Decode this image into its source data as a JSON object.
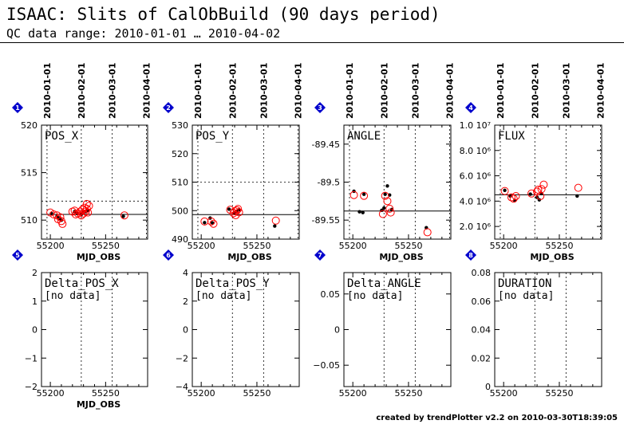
{
  "header": {
    "title": "ISAAC: Slits of CalObBuild (90 days period)",
    "subtitle": "QC data range: 2010-01-01 … 2010-04-02"
  },
  "footer": "created by trendPlotter v2.2 on 2010-03-30T18:39:05",
  "colors": {
    "model": "#000000",
    "measured": "#ff0000",
    "badge": "#0000cc"
  },
  "chart_data": [
    {
      "panel": "1",
      "type": "scatter",
      "title": "POS_X",
      "xlabel": "MJD_OBS",
      "ylabel": "",
      "xlim": [
        55192,
        55288
      ],
      "ylim": [
        508,
        520
      ],
      "yticks": [
        510,
        515,
        520
      ],
      "ytick_labels": [
        "510",
        "515",
        "520"
      ],
      "xticks": [
        55200,
        55250
      ],
      "xtick_labels": [
        "55200",
        "55250"
      ],
      "date_ticks": [
        {
          "x": 55197,
          "label": "2010-01-01"
        },
        {
          "x": 55228,
          "label": "2010-02-01"
        },
        {
          "x": 55256,
          "label": "2010-03-01"
        },
        {
          "x": 55287,
          "label": "2010-04-01"
        }
      ],
      "reference_line": 510.6,
      "threshold_lines": [
        512
      ],
      "series": [
        {
          "name": "model",
          "style": "dot",
          "points": [
            [
              55201,
              510.7
            ],
            [
              55206,
              510.4
            ],
            [
              55208,
              510.2
            ],
            [
              55210,
              510.0
            ],
            [
              55222,
              510.9
            ],
            [
              55224,
              510.7
            ],
            [
              55228,
              510.6
            ],
            [
              55230,
              510.8
            ],
            [
              55232,
              510.9
            ],
            [
              55234,
              511.0
            ],
            [
              55266,
              510.4
            ]
          ]
        },
        {
          "name": "measured",
          "style": "circle",
          "points": [
            [
              55200,
              510.8
            ],
            [
              55203,
              510.6
            ],
            [
              55206,
              510.5
            ],
            [
              55207,
              510.1
            ],
            [
              55209,
              510.3
            ],
            [
              55210,
              509.9
            ],
            [
              55211,
              509.6
            ],
            [
              55220,
              510.9
            ],
            [
              55222,
              511.0
            ],
            [
              55223,
              510.6
            ],
            [
              55225,
              510.7
            ],
            [
              55227,
              510.9
            ],
            [
              55228,
              510.5
            ],
            [
              55229,
              511.1
            ],
            [
              55230,
              510.7
            ],
            [
              55231,
              511.3
            ],
            [
              55232,
              510.9
            ],
            [
              55233,
              511.2
            ],
            [
              55233,
              511.7
            ],
            [
              55234,
              510.8
            ],
            [
              55235,
              511.5
            ],
            [
              55267,
              510.5
            ]
          ]
        }
      ]
    },
    {
      "panel": "2",
      "type": "scatter",
      "title": "POS_Y",
      "xlabel": "MJD_OBS",
      "ylabel": "",
      "xlim": [
        55192,
        55288
      ],
      "ylim": [
        490,
        530
      ],
      "yticks": [
        490,
        500,
        510,
        520,
        530
      ],
      "ytick_labels": [
        "490",
        "500",
        "510",
        "520",
        "530"
      ],
      "xticks": [
        55200,
        55250
      ],
      "xtick_labels": [
        "55200",
        "55250"
      ],
      "date_ticks": [
        {
          "x": 55197,
          "label": "2010-01-01"
        },
        {
          "x": 55228,
          "label": "2010-02-01"
        },
        {
          "x": 55256,
          "label": "2010-03-01"
        },
        {
          "x": 55287,
          "label": "2010-04-01"
        }
      ],
      "reference_line": 498.6,
      "threshold_lines": [
        510
      ],
      "series": [
        {
          "name": "model",
          "style": "dot",
          "points": [
            [
              55203,
              495.8
            ],
            [
              55208,
              497.4
            ],
            [
              55210,
              495.7
            ],
            [
              55225,
              500.5
            ],
            [
              55230,
              499.2
            ],
            [
              55232,
              499.8
            ],
            [
              55234,
              500.3
            ],
            [
              55266,
              494.6
            ]
          ]
        },
        {
          "name": "measured",
          "style": "circle",
          "points": [
            [
              55203,
              496.2
            ],
            [
              55209,
              496.2
            ],
            [
              55211,
              495.4
            ],
            [
              55226,
              500.3
            ],
            [
              55229,
              499.1
            ],
            [
              55230,
              499.8
            ],
            [
              55231,
              498.4
            ],
            [
              55232,
              500.1
            ],
            [
              55233,
              500.6
            ],
            [
              55234,
              499.4
            ],
            [
              55267,
              496.5
            ]
          ]
        }
      ]
    },
    {
      "panel": "3",
      "type": "scatter",
      "title": "ANGLE",
      "xlabel": "MJD_OBS",
      "ylabel": "",
      "xlim": [
        55192,
        55288
      ],
      "ylim": [
        -89.575,
        -89.425
      ],
      "yticks": [
        -89.45,
        -89.5,
        -89.55
      ],
      "ytick_labels": [
        "-89.45",
        "-89.5",
        "-89.55"
      ],
      "xticks": [
        55200,
        55250
      ],
      "xtick_labels": [
        "55200",
        "55250"
      ],
      "date_ticks": [
        {
          "x": 55197,
          "label": "2010-01-01"
        },
        {
          "x": 55228,
          "label": "2010-02-01"
        },
        {
          "x": 55256,
          "label": "2010-03-01"
        },
        {
          "x": 55287,
          "label": "2010-04-01"
        }
      ],
      "reference_line": -89.538,
      "threshold_lines": [],
      "series": [
        {
          "name": "model",
          "style": "dot",
          "points": [
            [
              55201,
              -89.512
            ],
            [
              55206,
              -89.539
            ],
            [
              55209,
              -89.54
            ],
            [
              55210,
              -89.516
            ],
            [
              55226,
              -89.537
            ],
            [
              55228,
              -89.534
            ],
            [
              55229,
              -89.516
            ],
            [
              55231,
              -89.505
            ],
            [
              55233,
              -89.517
            ],
            [
              55235,
              -89.536
            ],
            [
              55266,
              -89.56
            ]
          ]
        },
        {
          "name": "measured",
          "style": "circle",
          "points": [
            [
              55201,
              -89.517
            ],
            [
              55210,
              -89.518
            ],
            [
              55227,
              -89.542
            ],
            [
              55229,
              -89.518
            ],
            [
              55231,
              -89.525
            ],
            [
              55233,
              -89.535
            ],
            [
              55234,
              -89.54
            ],
            [
              55267,
              -89.566
            ]
          ]
        }
      ]
    },
    {
      "panel": "4",
      "type": "scatter",
      "title": "FLUX",
      "xlabel": "MJD_OBS",
      "ylabel": "",
      "xlim": [
        55192,
        55288
      ],
      "ylim": [
        1000000,
        10000000
      ],
      "yticks": [
        2000000,
        4000000,
        6000000,
        8000000,
        10000000
      ],
      "ytick_labels": [
        "2.0 10⁶",
        "4.0 10⁶",
        "6.0 10⁶",
        "8.0 10⁶",
        "1.0 10⁷"
      ],
      "xticks": [
        55200,
        55250
      ],
      "xtick_labels": [
        "55200",
        "55250"
      ],
      "date_ticks": [
        {
          "x": 55197,
          "label": "2010-01-01"
        },
        {
          "x": 55228,
          "label": "2010-02-01"
        },
        {
          "x": 55256,
          "label": "2010-03-01"
        },
        {
          "x": 55287,
          "label": "2010-04-01"
        }
      ],
      "reference_line": 4500000,
      "threshold_lines": [],
      "series": [
        {
          "name": "model",
          "style": "dot",
          "points": [
            [
              55201,
              4850000
            ],
            [
              55206,
              4400000
            ],
            [
              55210,
              4050000
            ],
            [
              55224,
              4550000
            ],
            [
              55230,
              4300000
            ],
            [
              55232,
              4100000
            ],
            [
              55234,
              4600000
            ],
            [
              55266,
              4400000
            ]
          ]
        },
        {
          "name": "measured",
          "style": "circle",
          "points": [
            [
              55201,
              4800000
            ],
            [
              55207,
              4300000
            ],
            [
              55209,
              4200000
            ],
            [
              55211,
              4400000
            ],
            [
              55225,
              4600000
            ],
            [
              55230,
              4750000
            ],
            [
              55231,
              4900000
            ],
            [
              55233,
              4400000
            ],
            [
              55234,
              4950000
            ],
            [
              55236,
              5300000
            ],
            [
              55267,
              5050000
            ]
          ]
        }
      ]
    },
    {
      "panel": "5",
      "type": "scatter",
      "title": "Delta_POS_X",
      "note": "[no data]",
      "xlabel": "MJD_OBS",
      "ylabel": "",
      "xlim": [
        55192,
        55288
      ],
      "ylim": [
        -2,
        2
      ],
      "yticks": [
        -2,
        -1,
        0,
        1,
        2
      ],
      "ytick_labels": [
        "−2",
        "−1",
        "0",
        "1",
        "2"
      ],
      "xticks": [
        55200,
        55250
      ],
      "xtick_labels": [
        "55200",
        "55250"
      ],
      "date_ticks": [
        {
          "x": 55228
        },
        {
          "x": 55256
        }
      ],
      "series": []
    },
    {
      "panel": "6",
      "type": "scatter",
      "title": "Delta_POS_Y",
      "note": "[no data]",
      "xlabel": "",
      "ylabel": "",
      "xlim": [
        55192,
        55288
      ],
      "ylim": [
        -4,
        4
      ],
      "yticks": [
        -4,
        -2,
        0,
        2,
        4
      ],
      "ytick_labels": [
        "−4",
        "−2",
        "0",
        "2",
        "4"
      ],
      "xticks": [
        55200,
        55250
      ],
      "xtick_labels": [
        "55200",
        "55250"
      ],
      "date_ticks": [
        {
          "x": 55228
        },
        {
          "x": 55256
        }
      ],
      "series": []
    },
    {
      "panel": "7",
      "type": "scatter",
      "title": "Delta_ANGLE",
      "note": "[no data]",
      "xlabel": "",
      "ylabel": "",
      "xlim": [
        55192,
        55288
      ],
      "ylim": [
        -0.08,
        0.08
      ],
      "yticks": [
        -0.05,
        0,
        0.05
      ],
      "ytick_labels": [
        "−0.05",
        "0",
        "0.05"
      ],
      "xticks": [
        55200,
        55250
      ],
      "xtick_labels": [
        "55200",
        "55250"
      ],
      "date_ticks": [
        {
          "x": 55228
        },
        {
          "x": 55256
        }
      ],
      "series": []
    },
    {
      "panel": "8",
      "type": "scatter",
      "title": "DURATION",
      "note": "[no data]",
      "xlabel": "",
      "ylabel": "",
      "xlim": [
        55192,
        55288
      ],
      "ylim": [
        0,
        0.08
      ],
      "yticks": [
        0,
        0.02,
        0.04,
        0.06,
        0.08
      ],
      "ytick_labels": [
        "0",
        "0.02",
        "0.04",
        "0.06",
        "0.08"
      ],
      "xticks": [
        55200,
        55250
      ],
      "xtick_labels": [
        "55200",
        "55250"
      ],
      "date_ticks": [
        {
          "x": 55228
        },
        {
          "x": 55256
        }
      ],
      "series": []
    }
  ]
}
